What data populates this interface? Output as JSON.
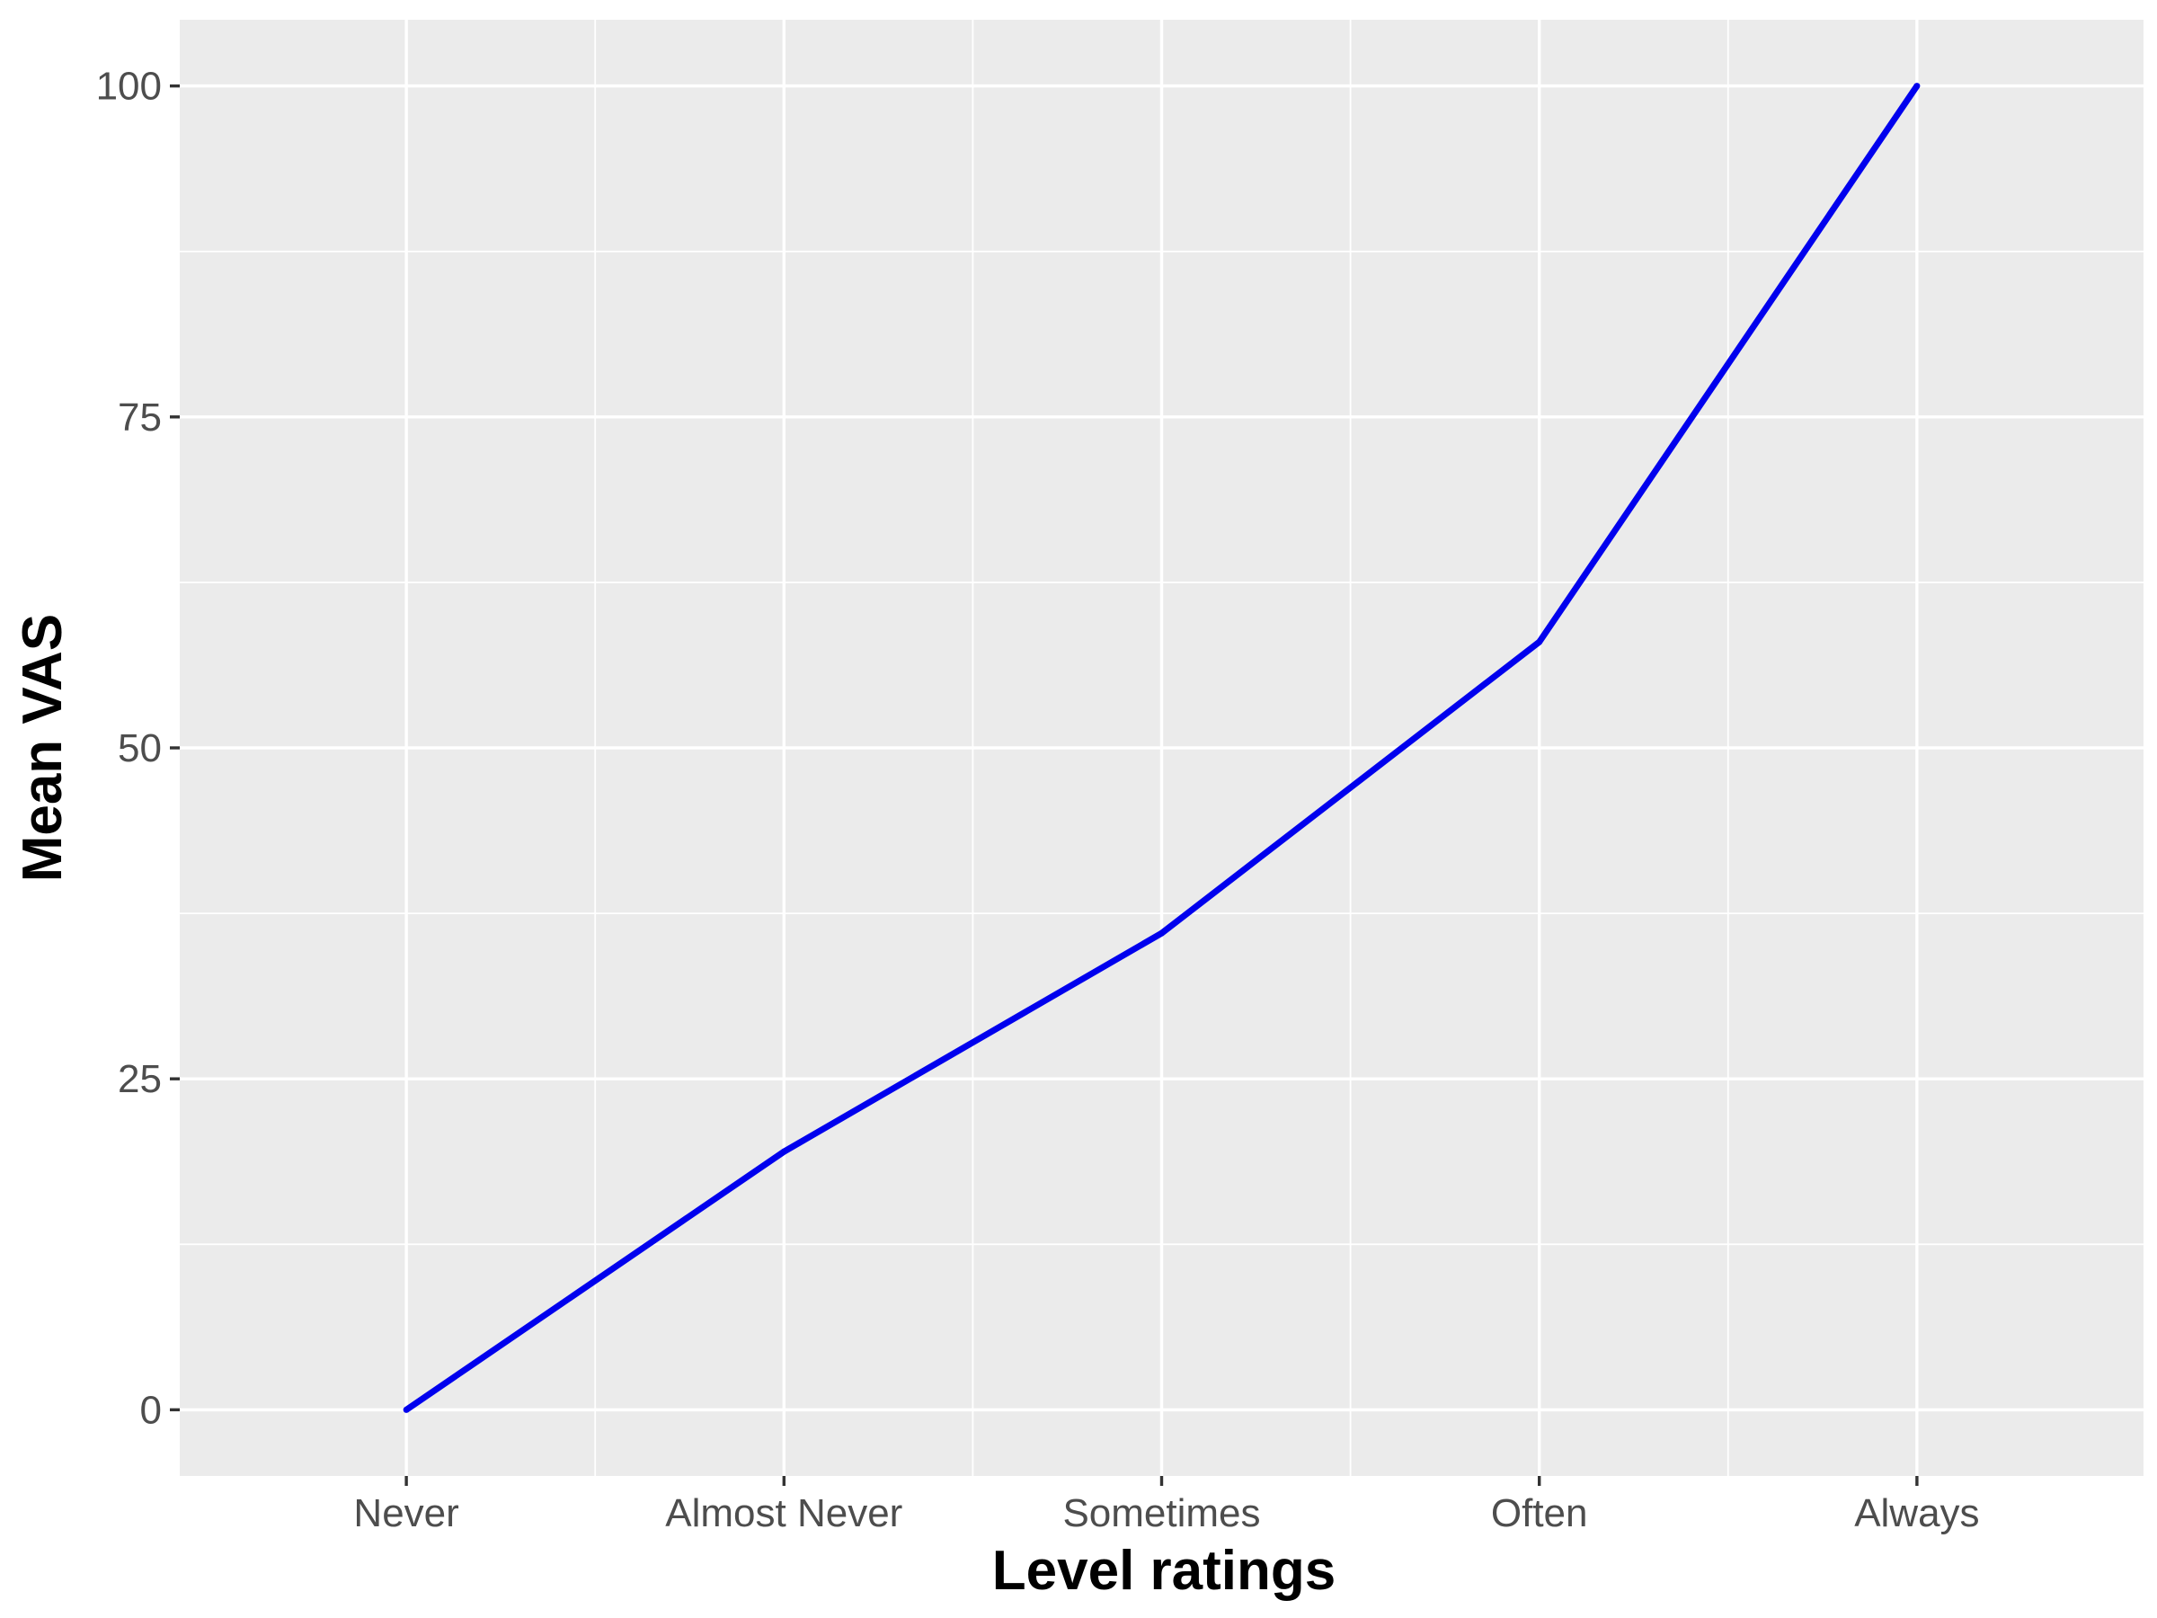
{
  "chart_data": {
    "type": "line",
    "title": "",
    "xlabel": "Level ratings",
    "ylabel": "Mean VAS",
    "categories": [
      "Never",
      "Almost Never",
      "Sometimes",
      "Often",
      "Always"
    ],
    "series": [
      {
        "values": [
          0,
          19.5,
          36,
          58,
          100
        ]
      }
    ],
    "ylim": [
      -5,
      105
    ],
    "yticks": [
      0,
      25,
      50,
      75,
      100
    ],
    "grid": true,
    "legend": "none",
    "colors": {
      "line": "#0000ee",
      "panel": "#ebebeb",
      "grid": "#ffffff"
    }
  }
}
